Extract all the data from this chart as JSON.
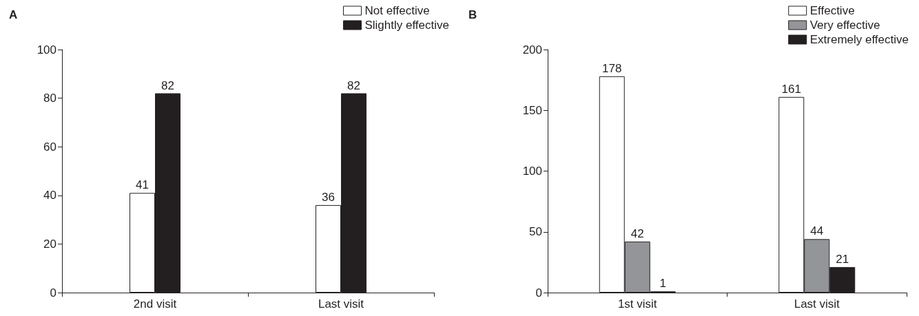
{
  "chart_data": [
    {
      "type": "bar",
      "title": "A",
      "categories": [
        "2nd visit",
        "Last visit"
      ],
      "series": [
        {
          "name": "Not effective",
          "color": "#ffffff",
          "values": [
            41,
            36
          ]
        },
        {
          "name": "Slightly effective",
          "color": "#231f20",
          "values": [
            82,
            82
          ]
        }
      ],
      "ylim": [
        0,
        100
      ],
      "yticks": [
        0,
        20,
        40,
        60,
        80,
        100
      ],
      "data_labels": true,
      "legend": "top right",
      "grid": false
    },
    {
      "type": "bar",
      "title": "B",
      "categories": [
        "1st visit",
        "Last visit"
      ],
      "series": [
        {
          "name": "Effective",
          "color": "#ffffff",
          "values": [
            178,
            161
          ]
        },
        {
          "name": "Very effective",
          "color": "#939598",
          "values": [
            42,
            44
          ]
        },
        {
          "name": "Extremely effective",
          "color": "#231f20",
          "values": [
            1,
            21
          ]
        }
      ],
      "ylim": [
        0,
        200
      ],
      "yticks": [
        0,
        50,
        100,
        150,
        200
      ],
      "data_labels": true,
      "legend": "top right",
      "grid": false
    }
  ]
}
